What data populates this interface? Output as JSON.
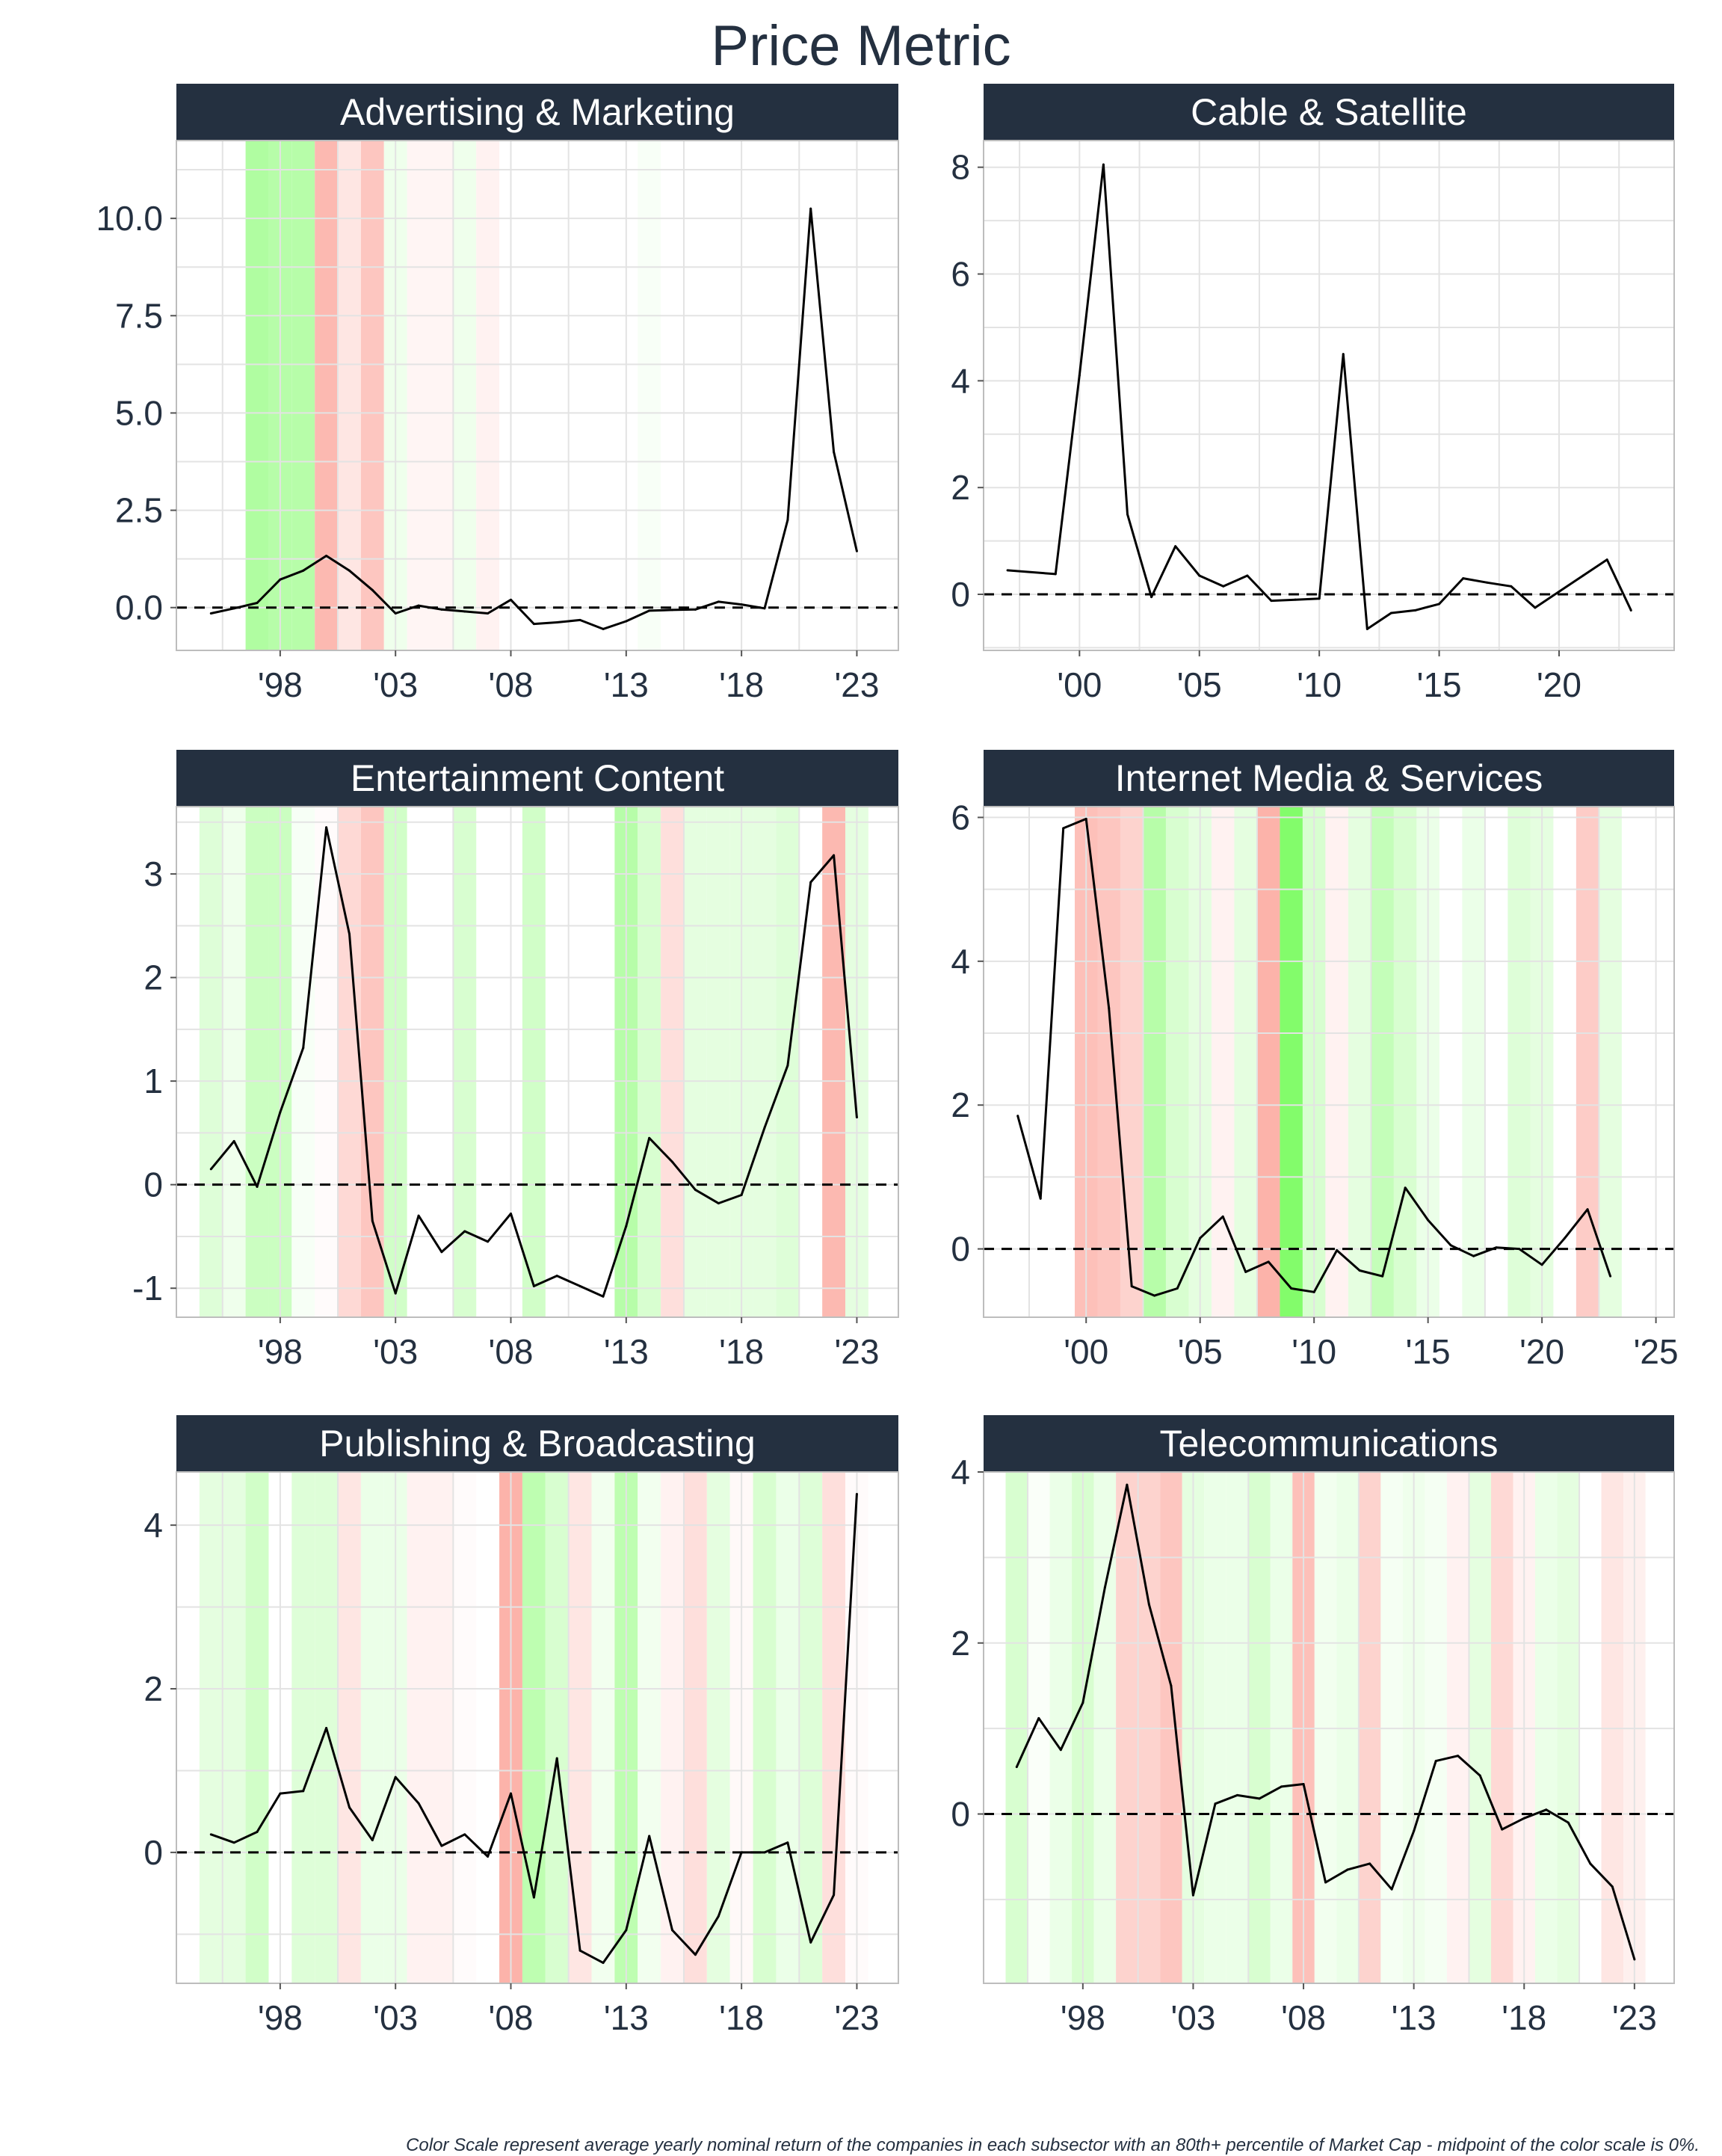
{
  "title": "Price Metric",
  "footnote": "Color Scale represent average yearly nominal return of the companies in each subsector with an 80th+ percentile of Market Cap - midpoint of the color scale is 0%.",
  "colors": {
    "strip": "#243040",
    "text": "#243040",
    "positive_max": "#7cfc63",
    "negative_max": "#fa8072",
    "line": "#000000",
    "grid": "#e3e3e3"
  },
  "chart_data": [
    {
      "type": "line",
      "title": "Advertising & Marketing",
      "xlim": [
        1993.5,
        2024.8
      ],
      "ylim": [
        -1.1,
        12.0
      ],
      "xticks": [
        1998,
        2003,
        2008,
        2013,
        2018,
        2023
      ],
      "xtick_labels": [
        "'98",
        "'03",
        "'08",
        "'13",
        "'18",
        "'23"
      ],
      "yticks": [
        0,
        2.5,
        5,
        7.5,
        10
      ],
      "ytick_labels": [
        "0.0",
        "2.5",
        "5.0",
        "7.5",
        "10.0"
      ],
      "zero_line": "dashed",
      "x": [
        1995,
        1996,
        1997,
        1998,
        1999,
        2000,
        2001,
        2002,
        2003,
        2004,
        2005,
        2006,
        2007,
        2008,
        2009,
        2010,
        2011,
        2012,
        2013,
        2014,
        2015,
        2016,
        2017,
        2018,
        2019,
        2020,
        2021,
        2022,
        2023
      ],
      "values": [
        -0.15,
        -0.02,
        0.12,
        0.72,
        0.95,
        1.33,
        0.95,
        0.45,
        -0.15,
        0.05,
        -0.05,
        -0.1,
        -0.15,
        0.2,
        -0.42,
        -0.38,
        -0.32,
        -0.55,
        -0.35,
        -0.08,
        -0.06,
        -0.05,
        0.15,
        0.08,
        -0.02,
        2.25,
        10.25,
        4.0,
        1.45
      ],
      "shading": [
        {
          "year": 1997,
          "value": 0.6
        },
        {
          "year": 1998,
          "value": 0.55
        },
        {
          "year": 1999,
          "value": 0.55
        },
        {
          "year": 2000,
          "value": -0.55
        },
        {
          "year": 2001,
          "value": -0.2
        },
        {
          "year": 2002,
          "value": -0.45
        },
        {
          "year": 2003,
          "value": 0.12
        },
        {
          "year": 2004,
          "value": -0.08
        },
        {
          "year": 2005,
          "value": -0.08
        },
        {
          "year": 2006,
          "value": 0.12
        },
        {
          "year": 2007,
          "value": -0.1
        },
        {
          "year": 2014,
          "value": 0.05
        }
      ]
    },
    {
      "type": "line",
      "title": "Cable & Satellite",
      "xlim": [
        1996.0,
        2024.8
      ],
      "ylim": [
        -1.05,
        8.5
      ],
      "xticks": [
        2000,
        2005,
        2010,
        2015,
        2020
      ],
      "xtick_labels": [
        "'00",
        "'05",
        "'10",
        "'15",
        "'20"
      ],
      "yticks": [
        0,
        2,
        4,
        6,
        8
      ],
      "ytick_labels": [
        "0",
        "2",
        "4",
        "6",
        "8"
      ],
      "zero_line": "dashed",
      "x": [
        1997,
        1999,
        2000,
        2001,
        2002,
        2003,
        2004,
        2005,
        2006,
        2007,
        2008,
        2009,
        2010,
        2011,
        2012,
        2013,
        2014,
        2015,
        2016,
        2017,
        2018,
        2019,
        2020,
        2021,
        2022,
        2023
      ],
      "values": [
        0.45,
        0.38,
        4.1,
        8.05,
        1.5,
        -0.05,
        0.9,
        0.35,
        0.15,
        0.35,
        -0.12,
        -0.1,
        -0.08,
        4.5,
        -0.65,
        -0.35,
        -0.3,
        -0.18,
        0.3,
        0.22,
        0.15,
        -0.25,
        0.05,
        0.35,
        0.65,
        -0.3
      ],
      "shading": []
    },
    {
      "type": "line",
      "title": "Entertainment Content",
      "xlim": [
        1993.5,
        2024.8
      ],
      "ylim": [
        -1.28,
        3.65
      ],
      "xticks": [
        1998,
        2003,
        2008,
        2013,
        2018,
        2023
      ],
      "xtick_labels": [
        "'98",
        "'03",
        "'08",
        "'13",
        "'18",
        "'23"
      ],
      "yticks": [
        -1,
        0,
        1,
        2,
        3
      ],
      "ytick_labels": [
        "-1",
        "0",
        "1",
        "2",
        "3"
      ],
      "zero_line": "dashed",
      "x": [
        1995,
        1996,
        1997,
        1998,
        1999,
        2000,
        2001,
        2002,
        2003,
        2004,
        2005,
        2006,
        2007,
        2008,
        2009,
        2010,
        2011,
        2012,
        2013,
        2014,
        2015,
        2016,
        2017,
        2018,
        2019,
        2020,
        2021,
        2022,
        2023
      ],
      "values": [
        0.15,
        0.42,
        -0.02,
        0.7,
        1.32,
        3.45,
        2.42,
        -0.35,
        -1.05,
        -0.3,
        -0.65,
        -0.45,
        -0.55,
        -0.28,
        -0.98,
        -0.88,
        -0.98,
        -1.08,
        -0.4,
        0.45,
        0.22,
        -0.05,
        -0.18,
        -0.1,
        0.55,
        1.15,
        2.92,
        3.18,
        0.65
      ],
      "shading": [
        {
          "year": 1995,
          "value": 0.25
        },
        {
          "year": 1996,
          "value": 0.12
        },
        {
          "year": 1997,
          "value": 0.4
        },
        {
          "year": 1998,
          "value": 0.4
        },
        {
          "year": 1999,
          "value": 0.06
        },
        {
          "year": 2000,
          "value": -0.03
        },
        {
          "year": 2001,
          "value": -0.3
        },
        {
          "year": 2002,
          "value": -0.45
        },
        {
          "year": 2003,
          "value": 0.35
        },
        {
          "year": 2006,
          "value": 0.3
        },
        {
          "year": 2009,
          "value": 0.35
        },
        {
          "year": 2013,
          "value": 0.55
        },
        {
          "year": 2014,
          "value": 0.3
        },
        {
          "year": 2015,
          "value": -0.25
        },
        {
          "year": 2016,
          "value": 0.2
        },
        {
          "year": 2017,
          "value": 0.2
        },
        {
          "year": 2018,
          "value": 0.2
        },
        {
          "year": 2019,
          "value": 0.2
        },
        {
          "year": 2020,
          "value": 0.25
        },
        {
          "year": 2022,
          "value": -0.55
        },
        {
          "year": 2023,
          "value": 0.2
        }
      ]
    },
    {
      "type": "line",
      "title": "Internet Media & Services",
      "xlim": [
        1995.5,
        2025.8
      ],
      "ylim": [
        -0.95,
        6.15
      ],
      "xticks": [
        2000,
        2005,
        2010,
        2015,
        2020,
        2025
      ],
      "xtick_labels": [
        "'00",
        "'05",
        "'10",
        "'15",
        "'20",
        "'25"
      ],
      "yticks": [
        0,
        2,
        4,
        6
      ],
      "ytick_labels": [
        "0",
        "2",
        "4",
        "6"
      ],
      "zero_line": "dashed",
      "x": [
        1997,
        1998,
        1999,
        2000,
        2001,
        2002,
        2003,
        2004,
        2005,
        2006,
        2007,
        2008,
        2009,
        2010,
        2011,
        2012,
        2013,
        2014,
        2015,
        2016,
        2017,
        2018,
        2019,
        2020,
        2021,
        2022,
        2023
      ],
      "values": [
        1.85,
        0.7,
        5.85,
        5.98,
        3.35,
        -0.52,
        -0.65,
        -0.55,
        0.15,
        0.45,
        -0.32,
        -0.18,
        -0.55,
        -0.6,
        -0.02,
        -0.3,
        -0.38,
        0.85,
        0.4,
        0.05,
        -0.1,
        0.02,
        0.0,
        -0.22,
        0.15,
        0.55,
        -0.38
      ],
      "shading": [
        {
          "year": 2000,
          "value": -0.5
        },
        {
          "year": 2001,
          "value": -0.45
        },
        {
          "year": 2002,
          "value": -0.35
        },
        {
          "year": 2003,
          "value": 0.55
        },
        {
          "year": 2004,
          "value": 0.3
        },
        {
          "year": 2005,
          "value": 0.2
        },
        {
          "year": 2006,
          "value": -0.1
        },
        {
          "year": 2007,
          "value": 0.2
        },
        {
          "year": 2008,
          "value": -0.6
        },
        {
          "year": 2009,
          "value": 0.95
        },
        {
          "year": 2010,
          "value": 0.3
        },
        {
          "year": 2011,
          "value": -0.1
        },
        {
          "year": 2012,
          "value": 0.2
        },
        {
          "year": 2013,
          "value": 0.45
        },
        {
          "year": 2014,
          "value": 0.3
        },
        {
          "year": 2015,
          "value": 0.15
        },
        {
          "year": 2017,
          "value": 0.15
        },
        {
          "year": 2019,
          "value": 0.25
        },
        {
          "year": 2020,
          "value": 0.2
        },
        {
          "year": 2022,
          "value": -0.4
        },
        {
          "year": 2023,
          "value": 0.2
        }
      ]
    },
    {
      "type": "line",
      "title": "Publishing & Broadcasting",
      "xlim": [
        1993.5,
        2024.8
      ],
      "ylim": [
        -1.6,
        4.65
      ],
      "xticks": [
        1998,
        2003,
        2008,
        2013,
        2018,
        2023
      ],
      "xtick_labels": [
        "'98",
        "'03",
        "'08",
        "'13",
        "'18",
        "'23"
      ],
      "yticks": [
        0,
        2,
        4
      ],
      "ytick_labels": [
        "0",
        "2",
        "4"
      ],
      "zero_line": "dashed",
      "x": [
        1995,
        1996,
        1997,
        1998,
        1999,
        2000,
        2001,
        2002,
        2003,
        2004,
        2005,
        2006,
        2007,
        2008,
        2009,
        2010,
        2011,
        2012,
        2013,
        2014,
        2015,
        2016,
        2017,
        2018,
        2019,
        2020,
        2021,
        2022,
        2023
      ],
      "values": [
        0.22,
        0.12,
        0.25,
        0.72,
        0.75,
        1.52,
        0.55,
        0.15,
        0.92,
        0.6,
        0.08,
        0.22,
        -0.05,
        0.72,
        -0.55,
        1.15,
        -1.2,
        -1.35,
        -0.95,
        0.2,
        -0.95,
        -1.25,
        -0.78,
        0.0,
        0.0,
        0.12,
        -1.1,
        -0.52,
        4.38
      ],
      "shading": [
        {
          "year": 1995,
          "value": 0.2
        },
        {
          "year": 1996,
          "value": 0.2
        },
        {
          "year": 1997,
          "value": 0.35
        },
        {
          "year": 1999,
          "value": 0.25
        },
        {
          "year": 2000,
          "value": 0.25
        },
        {
          "year": 2001,
          "value": -0.2
        },
        {
          "year": 2002,
          "value": 0.15
        },
        {
          "year": 2003,
          "value": 0.15
        },
        {
          "year": 2004,
          "value": -0.1
        },
        {
          "year": 2005,
          "value": -0.1
        },
        {
          "year": 2006,
          "value": -0.03
        },
        {
          "year": 2008,
          "value": -0.6
        },
        {
          "year": 2009,
          "value": 0.5
        },
        {
          "year": 2010,
          "value": 0.3
        },
        {
          "year": 2011,
          "value": -0.2
        },
        {
          "year": 2012,
          "value": 0.1
        },
        {
          "year": 2013,
          "value": 0.5
        },
        {
          "year": 2014,
          "value": 0.1
        },
        {
          "year": 2015,
          "value": -0.1
        },
        {
          "year": 2016,
          "value": -0.25
        },
        {
          "year": 2017,
          "value": 0.2
        },
        {
          "year": 2018,
          "value": -0.05
        },
        {
          "year": 2019,
          "value": 0.3
        },
        {
          "year": 2020,
          "value": 0.15
        },
        {
          "year": 2021,
          "value": 0.25
        },
        {
          "year": 2022,
          "value": -0.25
        },
        {
          "year": 2023,
          "value": -0.03
        }
      ]
    },
    {
      "type": "line",
      "title": "Telecommunications",
      "xlim": [
        1993.5,
        2024.8
      ],
      "ylim": [
        -1.98,
        4.0
      ],
      "xticks": [
        1998,
        2003,
        2008,
        2013,
        2018,
        2023
      ],
      "xtick_labels": [
        "'98",
        "'03",
        "'08",
        "'13",
        "'18",
        "'23"
      ],
      "yticks": [
        0,
        2,
        4
      ],
      "ytick_labels": [
        "0",
        "2",
        "4"
      ],
      "zero_line": "dashed",
      "x": [
        1995,
        1996,
        1997,
        1998,
        1999,
        2000,
        2001,
        2002,
        2003,
        2004,
        2005,
        2006,
        2007,
        2008,
        2009,
        2010,
        2011,
        2012,
        2013,
        2014,
        2015,
        2016,
        2017,
        2018,
        2019,
        2020,
        2021,
        2022,
        2023
      ],
      "values": [
        0.55,
        1.12,
        0.75,
        1.3,
        2.65,
        3.85,
        2.45,
        1.5,
        -0.95,
        0.12,
        0.22,
        0.18,
        0.32,
        0.35,
        -0.8,
        -0.65,
        -0.58,
        -0.88,
        -0.2,
        0.62,
        0.68,
        0.45,
        -0.18,
        -0.05,
        0.05,
        -0.1,
        -0.58,
        -0.85,
        -1.7
      ],
      "shading": [
        {
          "year": 1995,
          "value": 0.3
        },
        {
          "year": 1996,
          "value": 0.04
        },
        {
          "year": 1997,
          "value": 0.15
        },
        {
          "year": 1998,
          "value": 0.3
        },
        {
          "year": 1999,
          "value": 0.15
        },
        {
          "year": 2000,
          "value": -0.35
        },
        {
          "year": 2001,
          "value": -0.35
        },
        {
          "year": 2002,
          "value": -0.45
        },
        {
          "year": 2003,
          "value": 0.2
        },
        {
          "year": 2004,
          "value": 0.15
        },
        {
          "year": 2005,
          "value": 0.15
        },
        {
          "year": 2006,
          "value": 0.3
        },
        {
          "year": 2007,
          "value": 0.15
        },
        {
          "year": 2008,
          "value": -0.5
        },
        {
          "year": 2009,
          "value": 0.1
        },
        {
          "year": 2010,
          "value": 0.15
        },
        {
          "year": 2011,
          "value": -0.35
        },
        {
          "year": 2012,
          "value": 0.08
        },
        {
          "year": 2013,
          "value": 0.12
        },
        {
          "year": 2014,
          "value": 0.08
        },
        {
          "year": 2015,
          "value": -0.1
        },
        {
          "year": 2016,
          "value": 0.2
        },
        {
          "year": 2017,
          "value": -0.3
        },
        {
          "year": 2018,
          "value": -0.1
        },
        {
          "year": 2019,
          "value": 0.15
        },
        {
          "year": 2020,
          "value": 0.2
        },
        {
          "year": 2022,
          "value": -0.2
        },
        {
          "year": 2023,
          "value": -0.12
        }
      ]
    }
  ]
}
